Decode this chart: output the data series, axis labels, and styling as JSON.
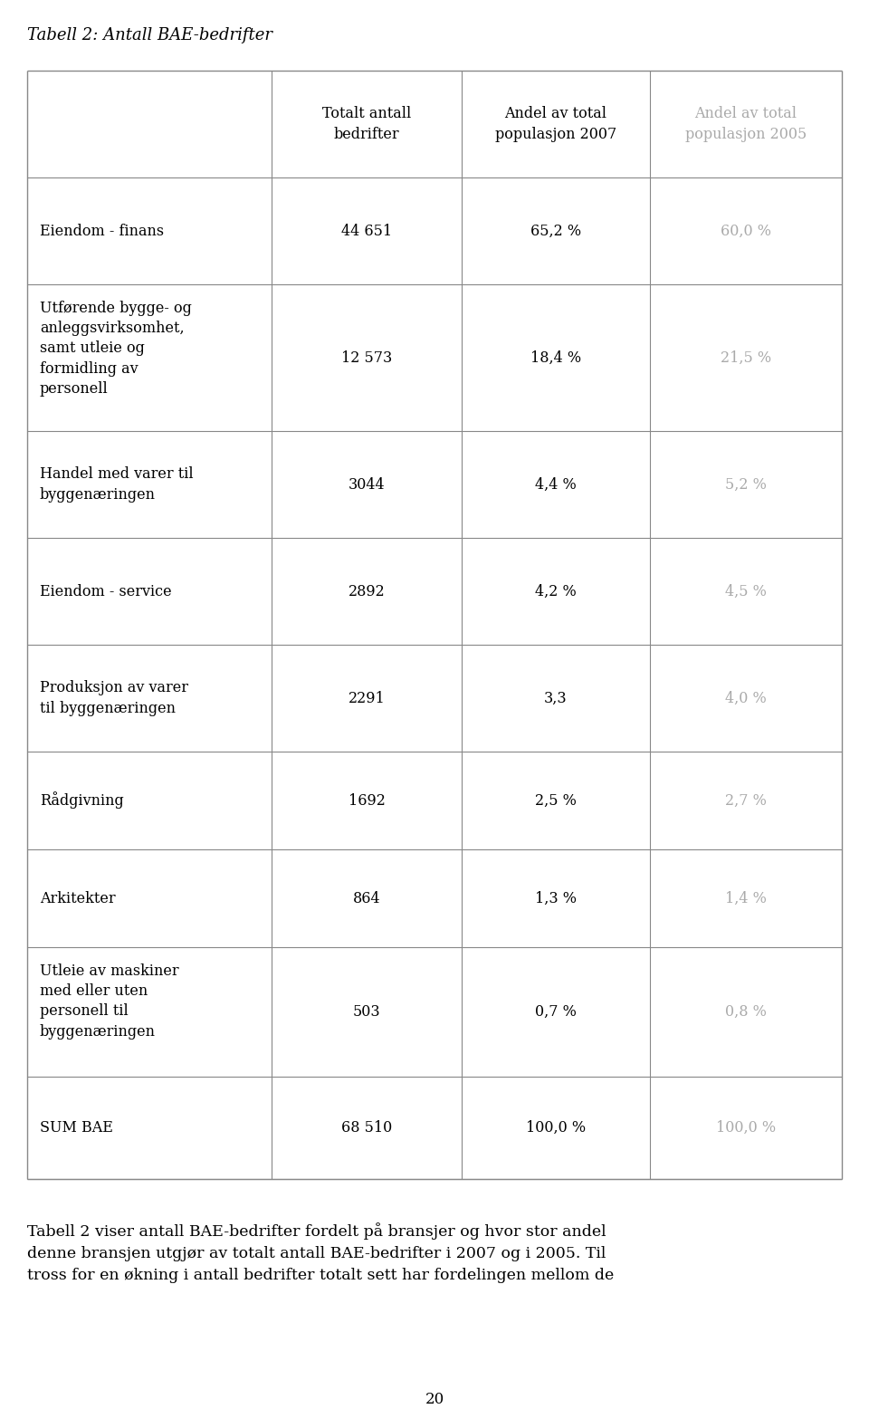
{
  "title": "Tabell 2: Antall BAE-bedrifter",
  "col_headers": [
    "",
    "Totalt antall\nbedrifter",
    "Andel av total\npopulasjon 2007",
    "Andel av total\npopulasjon 2005"
  ],
  "rows": [
    {
      "label": "Eiendom - finans",
      "col2": "44 651",
      "col3": "65,2 %",
      "col4": "60,0 %"
    },
    {
      "label": "Utførende bygge- og\nanleggsvirksomhet,\nsamt utleie og\nformidling av\npersonell",
      "col2": "12 573",
      "col3": "18,4 %",
      "col4": "21,5 %"
    },
    {
      "label": "Handel med varer til\nbyggenæringen",
      "col2": "3044",
      "col3": "4,4 %",
      "col4": "5,2 %"
    },
    {
      "label": "Eiendom - service",
      "col2": "2892",
      "col3": "4,2 %",
      "col4": "4,5 %"
    },
    {
      "label": "Produksjon av varer\ntil byggenæringen",
      "col2": "2291",
      "col3": "3,3",
      "col4": "4,0 %"
    },
    {
      "label": "Rådgivning",
      "col2": "1692",
      "col3": "2,5 %",
      "col4": "2,7 %"
    },
    {
      "label": "Arkitekter",
      "col2": "864",
      "col3": "1,3 %",
      "col4": "1,4 %"
    },
    {
      "label": "Utleie av maskiner\nmed eller uten\npersonell til\nbyggenæringen",
      "col2": "503",
      "col3": "0,7 %",
      "col4": "0,8 %"
    },
    {
      "label": "SUM BAE",
      "col2": "68 510",
      "col3": "100,0 %",
      "col4": "100,0 %"
    }
  ],
  "footer_text": "Tabell 2 viser antall BAE-bedrifter fordelt på bransjer og hvor stor andel\ndenne bransjen utgjør av totalt antall BAE-bedrifter i 2007 og i 2005. Til\ntross for en økning i antall bedrifter totalt sett har fordelingen mellom de",
  "page_number": "20",
  "title_color": "#000000",
  "header_text_color": "#000000",
  "col4_color": "#aaaaaa",
  "body_text_color": "#000000",
  "line_color": "#888888",
  "background_color": "#ffffff",
  "title_fontsize": 13,
  "header_fontsize": 11.5,
  "body_fontsize": 11.5,
  "footer_fontsize": 12.5
}
